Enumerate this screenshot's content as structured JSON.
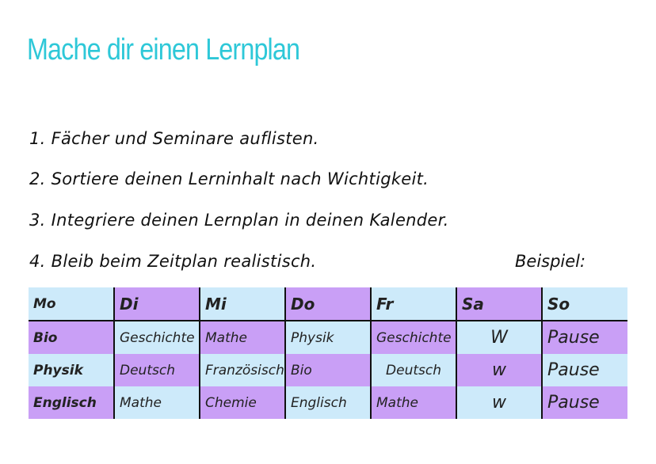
{
  "title": "Mache dir einen Lernplan",
  "steps": [
    "1. Fächer und Seminare auflisten.",
    "2. Sortiere deinen Lerninhalt nach Wichtigkeit.",
    "3. Integriere deinen Lernplan in deinen Kalender.",
    "4. Bleib beim Zeitplan realistisch."
  ],
  "example_label": "Beispiel:",
  "colors": {
    "title": "#2ec8d8",
    "blue": "#cdeafa",
    "purple": "#c99ff6"
  },
  "table": {
    "headers": [
      "Mo",
      "Di",
      "Mi",
      "Do",
      "Fr",
      "Sa",
      "So"
    ],
    "rows": [
      [
        "Bio",
        "Geschichte",
        "Mathe",
        "Physik",
        "Geschichte",
        "W",
        "Pause"
      ],
      [
        "Physik",
        "Deutsch",
        "Französisch",
        "Bio",
        "Deutsch",
        "w",
        "Pause"
      ],
      [
        "Englisch",
        "Mathe",
        "Chemie",
        "Englisch",
        "Mathe",
        "w",
        "Pause"
      ]
    ]
  }
}
